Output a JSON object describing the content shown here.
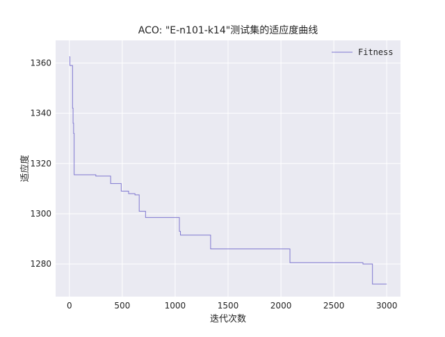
{
  "chart_data": {
    "type": "line",
    "title": "ACO: \"E-n101-k14\"测试集的适应度曲线",
    "xlabel": "迭代次数",
    "ylabel": "适应度",
    "xlim": [
      -130,
      3130
    ],
    "ylim": [
      1267,
      1369
    ],
    "xticks": [
      0,
      500,
      1000,
      1500,
      2000,
      2500,
      3000
    ],
    "yticks": [
      1280,
      1300,
      1320,
      1340,
      1360
    ],
    "grid": true,
    "legend_position": "top-right",
    "series": [
      {
        "name": "Fitness",
        "color": "#7f77d0",
        "points": [
          [
            0,
            1362.5
          ],
          [
            5,
            1362.5
          ],
          [
            5,
            1359
          ],
          [
            30,
            1359
          ],
          [
            30,
            1342
          ],
          [
            35,
            1342
          ],
          [
            35,
            1336
          ],
          [
            40,
            1336
          ],
          [
            40,
            1332
          ],
          [
            45,
            1332
          ],
          [
            45,
            1315.5
          ],
          [
            250,
            1315.5
          ],
          [
            250,
            1315
          ],
          [
            390,
            1315
          ],
          [
            390,
            1312
          ],
          [
            490,
            1312
          ],
          [
            490,
            1309
          ],
          [
            560,
            1309
          ],
          [
            560,
            1308
          ],
          [
            620,
            1308
          ],
          [
            620,
            1307.5
          ],
          [
            660,
            1307.5
          ],
          [
            660,
            1301
          ],
          [
            720,
            1301
          ],
          [
            720,
            1298.5
          ],
          [
            1040,
            1298.5
          ],
          [
            1040,
            1293
          ],
          [
            1050,
            1293
          ],
          [
            1050,
            1291.5
          ],
          [
            1335,
            1291.5
          ],
          [
            1335,
            1286
          ],
          [
            2085,
            1286
          ],
          [
            2085,
            1280.5
          ],
          [
            2775,
            1280.5
          ],
          [
            2775,
            1280
          ],
          [
            2865,
            1280
          ],
          [
            2865,
            1272
          ],
          [
            3000,
            1272
          ]
        ]
      }
    ]
  }
}
